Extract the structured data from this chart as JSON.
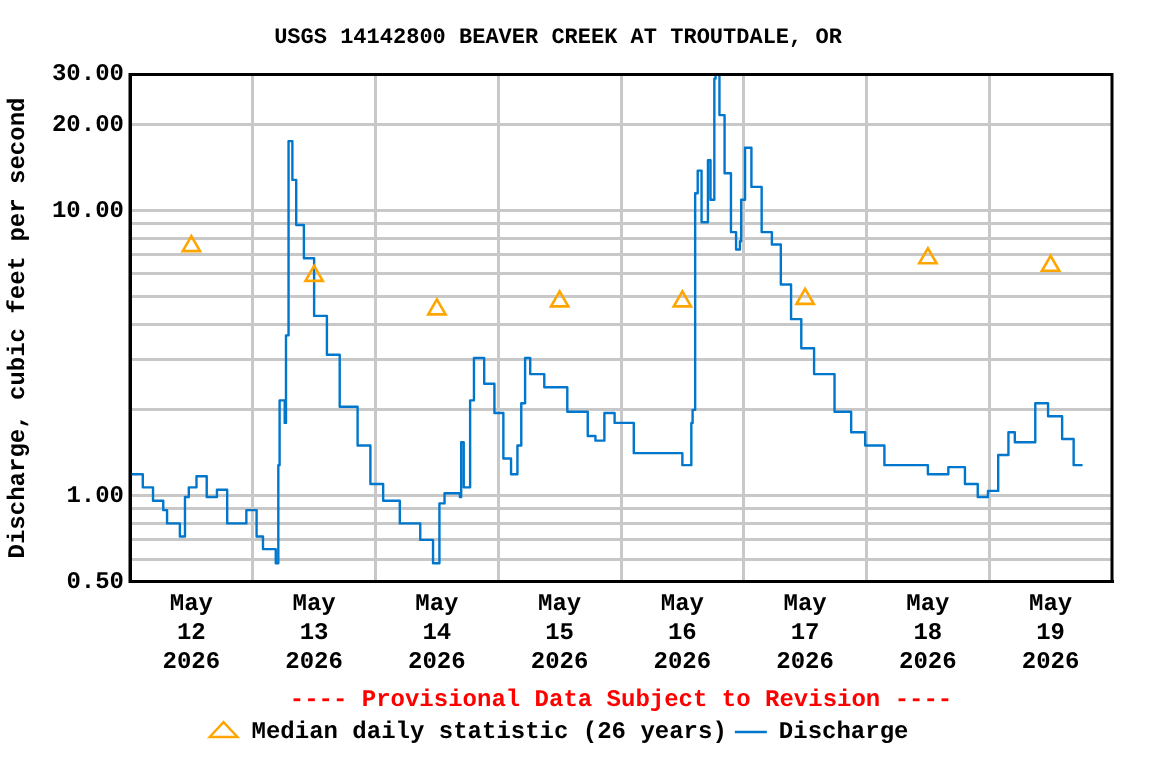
{
  "chart_data": {
    "type": "step",
    "title": "USGS 14142800 BEAVER CREEK AT TROUTDALE, OR",
    "ylabel": "Discharge, cubic feet per second",
    "annotations": [
      "---- Provisional Data Subject to Revision ----"
    ],
    "log": "y",
    "grid": true,
    "legend": "bottom",
    "xlim": [
      "2026-05-12T00:00",
      "2026-05-20T00:00"
    ],
    "xticks": [
      {
        "value": "2026-05-12T12:00",
        "label": "May\n12\n2026"
      },
      {
        "value": "2026-05-13T00:00",
        "label": null
      },
      {
        "value": "2026-05-13T12:00",
        "label": "May\n13\n2026"
      },
      {
        "value": "2026-05-14T00:00",
        "label": null
      },
      {
        "value": "2026-05-14T12:00",
        "label": "May\n14\n2026"
      },
      {
        "value": "2026-05-15T00:00",
        "label": null
      },
      {
        "value": "2026-05-15T12:00",
        "label": "May\n15\n2026"
      },
      {
        "value": "2026-05-16T00:00",
        "label": null
      },
      {
        "value": "2026-05-16T12:00",
        "label": "May\n16\n2026"
      },
      {
        "value": "2026-05-17T00:00",
        "label": null
      },
      {
        "value": "2026-05-17T12:00",
        "label": "May\n17\n2026"
      },
      {
        "value": "2026-05-18T00:00",
        "label": null
      },
      {
        "value": "2026-05-18T12:00",
        "label": "May\n18\n2026"
      },
      {
        "value": "2026-05-19T00:00",
        "label": null
      },
      {
        "value": "2026-05-19T12:00",
        "label": "May\n19\n2026"
      }
    ],
    "ylim": [
      0.5,
      30
    ],
    "yticks": [
      {
        "value": 0.5,
        "label": "0.50"
      },
      {
        "value": 0.6,
        "label": null
      },
      {
        "value": 0.7,
        "label": null
      },
      {
        "value": 0.8,
        "label": null
      },
      {
        "value": 0.9,
        "label": null
      },
      {
        "value": 1,
        "label": "1.00"
      },
      {
        "value": 2,
        "label": null
      },
      {
        "value": 3,
        "label": null
      },
      {
        "value": 4,
        "label": null
      },
      {
        "value": 5,
        "label": null
      },
      {
        "value": 6,
        "label": null
      },
      {
        "value": 7,
        "label": null
      },
      {
        "value": 8,
        "label": null
      },
      {
        "value": 9,
        "label": null
      },
      {
        "value": 10,
        "label": "10.00"
      },
      {
        "value": 20,
        "label": "20.00"
      },
      {
        "value": 30,
        "label": "30.00"
      }
    ],
    "series": [
      {
        "name": "Median daily statistic (26 years)",
        "type": "scatter",
        "marker": "triangle",
        "color": "#ffa500",
        "x": [
          "2026-05-12T12:00",
          "2026-05-13T12:00",
          "2026-05-14T12:00",
          "2026-05-15T12:00",
          "2026-05-16T12:00",
          "2026-05-17T12:00",
          "2026-05-18T12:00",
          "2026-05-19T12:00"
        ],
        "values": [
          7.5,
          5.9,
          4.5,
          4.8,
          4.8,
          4.9,
          6.8,
          6.4
        ]
      },
      {
        "name": "Discharge",
        "type": "step",
        "marker": "none",
        "color": "#0077cc",
        "x": [
          "2026-05-12T00:15",
          "2026-05-12T02:30",
          "2026-05-12T04:30",
          "2026-05-12T06:30",
          "2026-05-12T07:15",
          "2026-05-12T09:45",
          "2026-05-12T10:45",
          "2026-05-12T11:30",
          "2026-05-12T13:00",
          "2026-05-12T15:00",
          "2026-05-12T17:00",
          "2026-05-12T19:00",
          "2026-05-12T22:45",
          "2026-05-13T00:45",
          "2026-05-13T02:00",
          "2026-05-13T04:30",
          "2026-05-13T05:00",
          "2026-05-13T05:15",
          "2026-05-13T06:15",
          "2026-05-13T06:30",
          "2026-05-13T07:00",
          "2026-05-13T07:45",
          "2026-05-13T08:30",
          "2026-05-13T10:00",
          "2026-05-13T12:00",
          "2026-05-13T14:30",
          "2026-05-13T17:00",
          "2026-05-13T20:30",
          "2026-05-13T23:00",
          "2026-05-14T01:30",
          "2026-05-14T04:45",
          "2026-05-14T08:45",
          "2026-05-14T11:15",
          "2026-05-14T12:30",
          "2026-05-14T13:30",
          "2026-05-14T16:30",
          "2026-05-14T16:45",
          "2026-05-14T17:15",
          "2026-05-14T18:30",
          "2026-05-14T19:15",
          "2026-05-14T21:15",
          "2026-05-14T23:15",
          "2026-05-15T01:00",
          "2026-05-15T02:30",
          "2026-05-15T03:45",
          "2026-05-15T04:30",
          "2026-05-15T05:15",
          "2026-05-15T06:15",
          "2026-05-15T09:00",
          "2026-05-15T13:30",
          "2026-05-15T17:30",
          "2026-05-15T19:00",
          "2026-05-15T20:45",
          "2026-05-15T22:45",
          "2026-05-16T02:30",
          "2026-05-16T11:45",
          "2026-05-16T12:00",
          "2026-05-16T13:45",
          "2026-05-16T14:00",
          "2026-05-16T14:30",
          "2026-05-16T15:00",
          "2026-05-16T15:45",
          "2026-05-16T17:00",
          "2026-05-16T17:30",
          "2026-05-16T18:15",
          "2026-05-16T18:30",
          "2026-05-16T19:15",
          "2026-05-16T20:15",
          "2026-05-16T21:30",
          "2026-05-16T22:30",
          "2026-05-16T23:15",
          "2026-05-16T23:30",
          "2026-05-17T00:15",
          "2026-05-17T01:30",
          "2026-05-17T03:30",
          "2026-05-17T05:30",
          "2026-05-17T07:15",
          "2026-05-17T09:15",
          "2026-05-17T11:15",
          "2026-05-17T13:45",
          "2026-05-17T17:45",
          "2026-05-17T21:00",
          "2026-05-17T23:45",
          "2026-05-18T03:30",
          "2026-05-18T12:00",
          "2026-05-18T16:00",
          "2026-05-18T19:15",
          "2026-05-18T21:45",
          "2026-05-18T23:45",
          "2026-05-19T01:45",
          "2026-05-19T03:45",
          "2026-05-19T05:00",
          "2026-05-19T08:00",
          "2026-05-19T09:00",
          "2026-05-19T11:30",
          "2026-05-19T14:15",
          "2026-05-19T16:30",
          "2026-05-19T18:15"
        ],
        "values": [
          1.19,
          1.07,
          0.96,
          0.89,
          0.8,
          0.72,
          0.99,
          1.07,
          1.17,
          0.99,
          1.05,
          0.8,
          0.89,
          0.72,
          0.65,
          0.58,
          1.28,
          2.16,
          1.8,
          3.65,
          17.5,
          12.8,
          8.9,
          6.8,
          4.27,
          3.12,
          2.05,
          1.5,
          1.1,
          0.96,
          0.8,
          0.7,
          0.58,
          0.94,
          1.02,
          0.99,
          1.54,
          1.07,
          2.16,
          3.04,
          2.47,
          1.95,
          1.35,
          1.19,
          1.5,
          2.11,
          3.04,
          2.67,
          2.4,
          1.97,
          1.62,
          1.56,
          1.95,
          1.8,
          1.41,
          1.41,
          1.28,
          1.8,
          2.0,
          11.5,
          13.8,
          9.1,
          15.0,
          10.9,
          29,
          30,
          21.6,
          13.5,
          8.4,
          7.3,
          7.8,
          10.9,
          16.6,
          12.1,
          8.4,
          7.6,
          5.5,
          4.16,
          3.29,
          2.67,
          1.97,
          1.67,
          1.5,
          1.28,
          1.19,
          1.26,
          1.1,
          0.99,
          1.04,
          1.39,
          1.67,
          1.54,
          1.54,
          2.11,
          1.9,
          1.58,
          1.28,
          1.28
        ]
      }
    ]
  }
}
